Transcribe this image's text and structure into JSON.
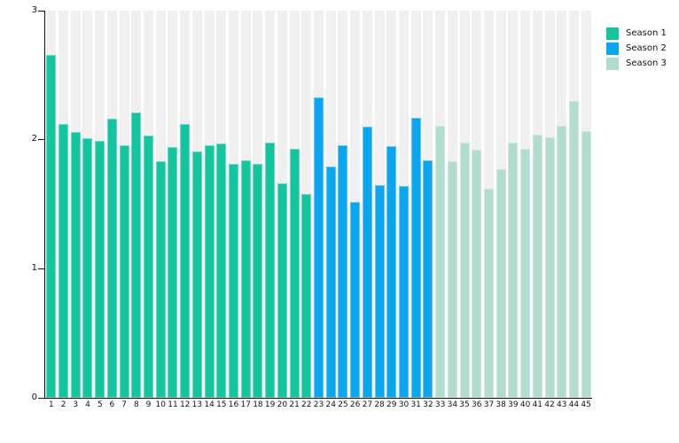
{
  "chart_data": {
    "type": "bar",
    "title": "",
    "xlabel": "",
    "ylabel": "",
    "ylim": [
      0,
      3
    ],
    "grid": false,
    "legend_position": "top-right",
    "track_color": "#f0f0f0",
    "axis_color": "#111111",
    "categories": [
      "1",
      "2",
      "3",
      "4",
      "5",
      "6",
      "7",
      "8",
      "9",
      "10",
      "11",
      "12",
      "13",
      "14",
      "15",
      "16",
      "17",
      "18",
      "19",
      "20",
      "21",
      "22",
      "23",
      "24",
      "25",
      "26",
      "27",
      "28",
      "29",
      "30",
      "31",
      "32",
      "33",
      "34",
      "35",
      "36",
      "37",
      "38",
      "39",
      "40",
      "41",
      "42",
      "43",
      "44",
      "45"
    ],
    "series": [
      {
        "name": "Season 1",
        "color": "#14c6a0",
        "start_category": "1",
        "values": [
          2.66,
          2.12,
          2.06,
          2.01,
          1.99,
          2.16,
          1.96,
          2.21,
          2.03,
          1.83,
          1.94,
          2.12,
          1.91,
          1.96,
          1.97,
          1.81,
          1.84,
          1.81,
          1.98,
          1.66,
          1.93,
          1.58
        ]
      },
      {
        "name": "Season 2",
        "color": "#0aa6f0",
        "start_category": "23",
        "values": [
          2.33,
          1.79,
          1.96,
          1.52,
          2.1,
          1.65,
          1.95,
          1.64,
          2.17,
          1.84
        ]
      },
      {
        "name": "Season 3",
        "color": "#b2dccc",
        "start_category": "33",
        "values": [
          2.11,
          1.83,
          1.98,
          1.92,
          1.62,
          1.77,
          1.98,
          1.93,
          2.04,
          2.02,
          2.11,
          2.3,
          2.07
        ]
      }
    ],
    "y_axis": {
      "tick_labels_top_to_bottom": [
        "3",
        "2",
        "1",
        "0"
      ],
      "tick_values_top_to_bottom": [
        3,
        2,
        1,
        0
      ]
    }
  }
}
